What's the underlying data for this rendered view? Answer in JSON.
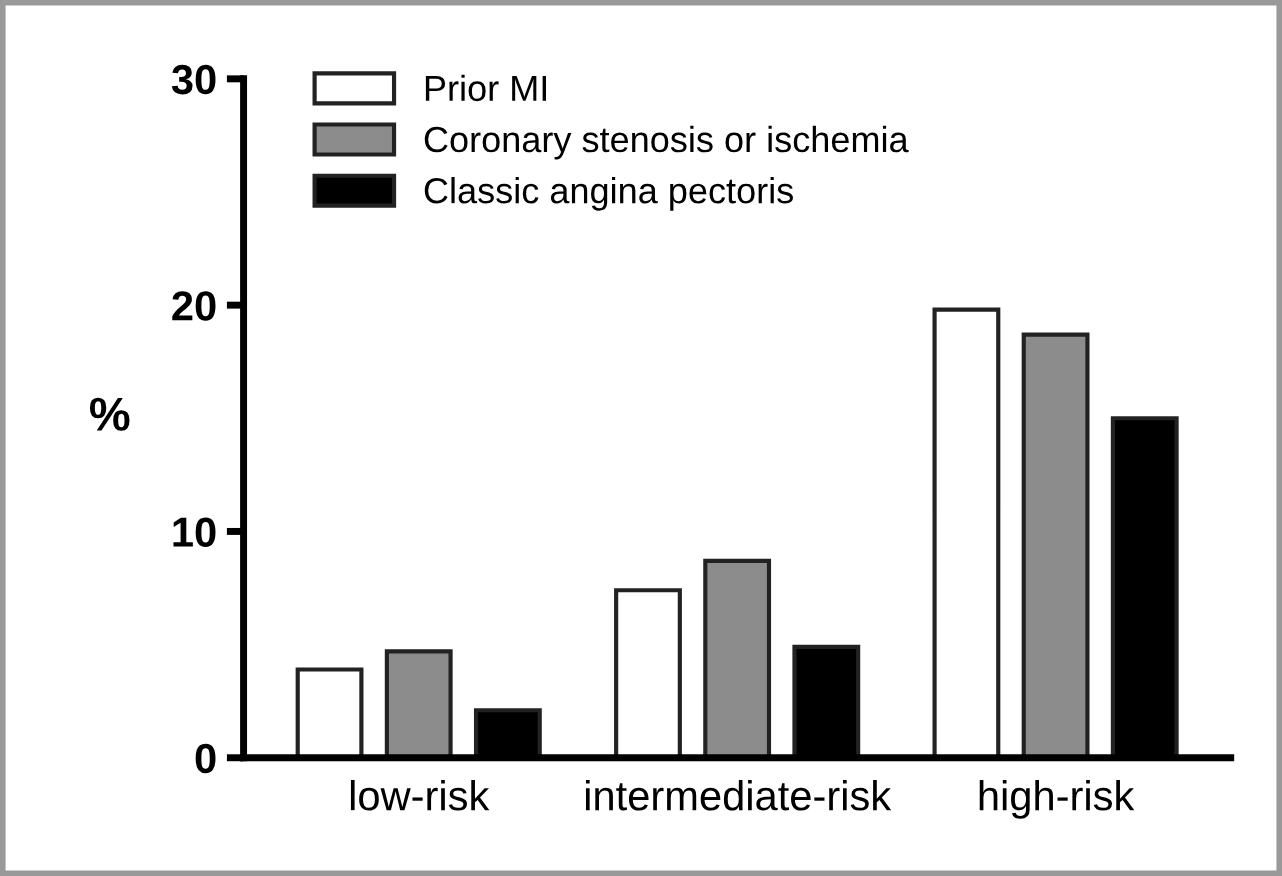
{
  "chart_data": {
    "type": "bar",
    "ylabel": "%",
    "categories": [
      "low-risk",
      "intermediate-risk",
      "high-risk"
    ],
    "series": [
      {
        "name": "Prior MI",
        "color": "#ffffff",
        "values": [
          3.9,
          7.4,
          19.8
        ]
      },
      {
        "name": "Coronary stenosis or ischemia",
        "color": "#8c8c8c",
        "values": [
          4.7,
          8.7,
          18.7
        ]
      },
      {
        "name": "Classic angina pectoris",
        "color": "#000000",
        "values": [
          2.1,
          4.9,
          15.0
        ]
      }
    ],
    "ylim": [
      0,
      30
    ],
    "yticks": [
      0,
      10,
      20,
      30
    ],
    "grid": false,
    "legend": "top left"
  }
}
